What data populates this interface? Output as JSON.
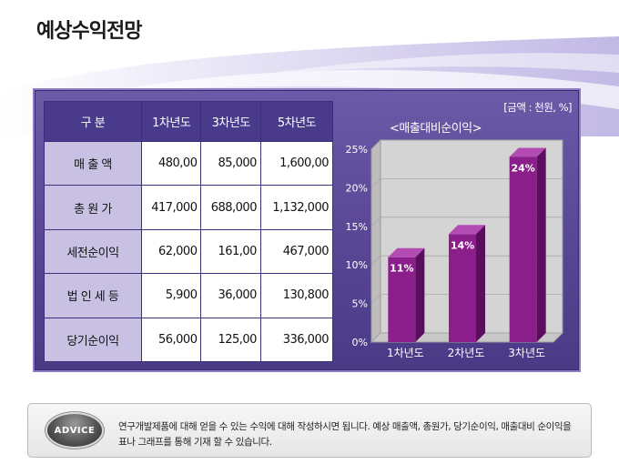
{
  "page": {
    "title": "예상수익전망"
  },
  "table": {
    "headers": [
      "구   분",
      "1차년도",
      "3차년도",
      "5차년도"
    ],
    "rows": [
      {
        "label": "매 출 액",
        "values": [
          "480,00",
          "85,000",
          "1,600,00"
        ]
      },
      {
        "label": "총 원 가",
        "values": [
          "417,000",
          "688,000",
          "1,132,000"
        ]
      },
      {
        "label": "세전순이익",
        "values": [
          "62,000",
          "161,00",
          "467,000"
        ]
      },
      {
        "label": "법 인 세 등",
        "values": [
          "5,900",
          "36,000",
          "130,800"
        ]
      },
      {
        "label": "당기순이익",
        "values": [
          "56,000",
          "125,00",
          "336,000"
        ]
      }
    ]
  },
  "unit_note": "[금액 : 천원, %]",
  "chart_data": {
    "type": "bar",
    "title": "<매출대비순이익>",
    "categories": [
      "1차년도",
      "2차년도",
      "3차년도"
    ],
    "values": [
      11,
      14,
      24
    ],
    "data_labels": [
      "11%",
      "14%",
      "24%"
    ],
    "ylim": [
      0,
      25
    ],
    "yticks": [
      "0%",
      "5%",
      "10%",
      "15%",
      "20%",
      "25%"
    ],
    "grid": true,
    "colors": {
      "bar": "#8a1f8c",
      "bar_top": "#b24bb4",
      "bar_side": "#5a0f5c"
    }
  },
  "advice": {
    "badge": "ADVICE",
    "text": "연구개발제품에 대해 얻을 수 있는 수익에 대해 작성하시면 됩니다. 예상 매출액, 총원가, 당기순이익, 매출대비 순이익을 표나 그래프를 통해 기재 할 수 있습니다."
  }
}
